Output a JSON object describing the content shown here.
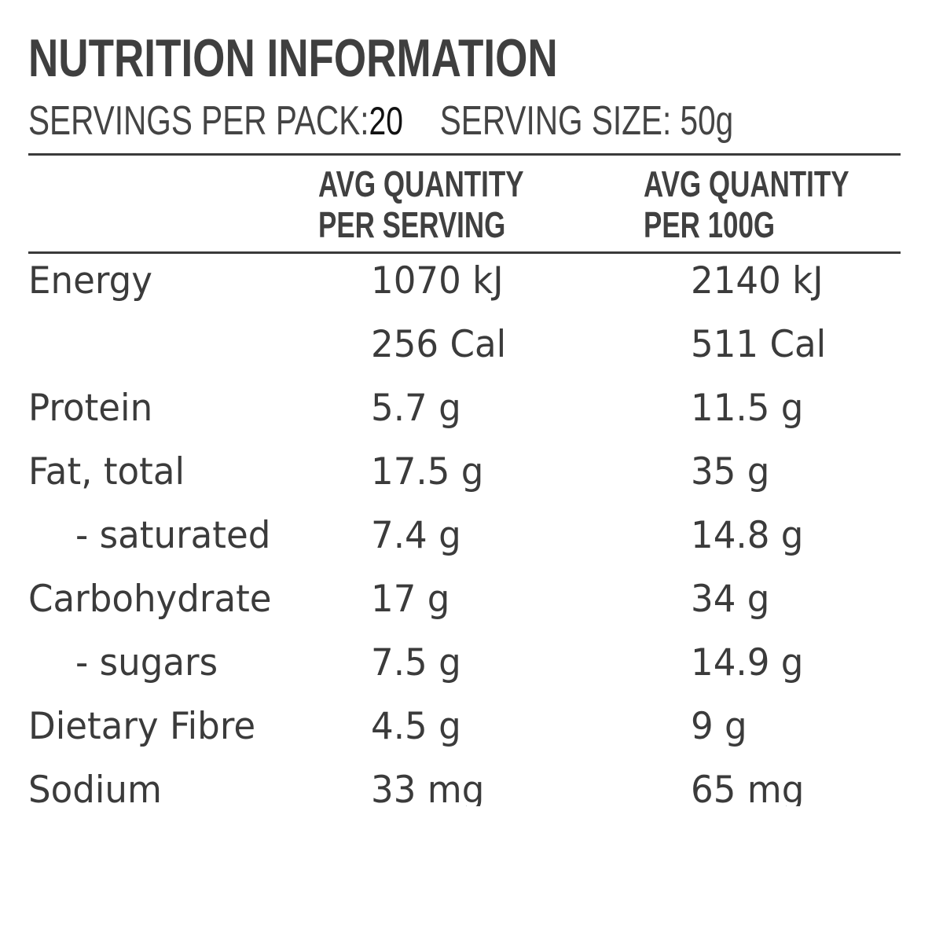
{
  "header": {
    "title": "NUTRITION INFORMATION",
    "servings_label": "SERVINGS PER PACK:",
    "servings_value": "20",
    "serving_size": "SERVING SIZE: 50g"
  },
  "columns": {
    "per_serving": [
      "AVG QUANTITY",
      "PER SERVING"
    ],
    "per_100g": [
      "AVG QUANTITY",
      "PER 100G"
    ]
  },
  "rows": [
    {
      "label": "Energy",
      "sub": false,
      "per_serving": "1070 kJ",
      "per_100g": "2140 kJ"
    },
    {
      "label": "",
      "sub": false,
      "per_serving": "256 Cal",
      "per_100g": "511 Cal"
    },
    {
      "label": "Protein",
      "sub": false,
      "per_serving": "5.7 g",
      "per_100g": "11.5 g"
    },
    {
      "label": "Fat, total",
      "sub": false,
      "per_serving": "17.5 g",
      "per_100g": "35 g"
    },
    {
      "label": "- saturated",
      "sub": true,
      "per_serving": "7.4 g",
      "per_100g": "14.8 g"
    },
    {
      "label": "Carbohydrate",
      "sub": false,
      "per_serving": "17 g",
      "per_100g": "34 g"
    },
    {
      "label": "- sugars",
      "sub": true,
      "per_serving": "7.5 g",
      "per_100g": "14.9 g"
    },
    {
      "label": "Dietary Fibre",
      "sub": false,
      "per_serving": "4.5 g",
      "per_100g": "9 g"
    },
    {
      "label": "Sodium",
      "sub": false,
      "per_serving": "33 mg",
      "per_100g": "65 mg"
    }
  ]
}
